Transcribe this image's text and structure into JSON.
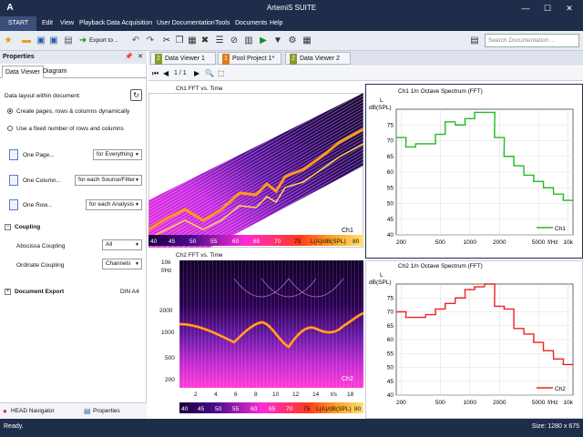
{
  "app": {
    "title": "ArtemiS SUITE",
    "logo": "A"
  },
  "window_controls": {
    "minimize": "—",
    "maximize": "☐",
    "close": "✕"
  },
  "menu": {
    "start": "START",
    "items": [
      "Edit",
      "View",
      "Playback",
      "Data Acquisition",
      "User Documentation",
      "Tools",
      "Documents",
      "Help"
    ]
  },
  "toolbar": {
    "export_label": "Export to ..",
    "search_placeholder": "Search Documentation ..."
  },
  "properties": {
    "title": "Properties",
    "tabs": [
      "Data Viewer",
      "Diagram"
    ],
    "layout_label": "Data layout within document:",
    "option1": "Create pages, rows & columns dynamically",
    "option2": "Use a fixed number of rows and columns",
    "one_page": "One Page...",
    "one_page_value": "for Everything",
    "one_column": "One Column...",
    "one_column_value": "for each Source/Filter",
    "one_row": "One Row...",
    "one_row_value": "for each Analysis",
    "coupling": "Coupling",
    "abscissa": "Abscissa Coupling",
    "abscissa_value": "All",
    "ordinate": "Ordinate Coupling",
    "ordinate_value": "Channels",
    "doc_export": "Document Export",
    "doc_export_value": "DIN A4",
    "bottom_tabs": [
      "HEAD Navigator",
      "Properties"
    ]
  },
  "doc_tabs": [
    {
      "num": "2",
      "label": "Data Viewer 1",
      "color": "#8a9a2a"
    },
    {
      "num": "1",
      "label": "Pool Project 1*",
      "color": "#e07a1a"
    },
    {
      "num": "2",
      "label": "Data Viewer 2",
      "color": "#8a9a2a"
    }
  ],
  "page_nav": "1 / 1",
  "charts": {
    "top_left": {
      "title": "Ch1 FFT vs. Time",
      "channel": "Ch1",
      "colorbar": [
        "40",
        "45",
        "50",
        "55",
        "60",
        "65",
        "70",
        "75",
        "L(A)/dB(SPL)",
        "80"
      ]
    },
    "bottom_left": {
      "title": "Ch2 FFT vs. Time",
      "channel": "Ch2",
      "y_unit_top": "10k",
      "y_unit": "f/Hz",
      "yticks": [
        "2000",
        "1000",
        "500",
        "200"
      ],
      "xticks": [
        "2",
        "4",
        "6",
        "8",
        "10",
        "12",
        "14",
        "t/s",
        "18"
      ],
      "colorbar": [
        "40",
        "45",
        "50",
        "55",
        "60",
        "65",
        "70",
        "75",
        "L(A)/dB(SPL)",
        "80"
      ]
    }
  },
  "chart_data": [
    {
      "type": "line",
      "title": "Ch1 1/n Octave Spectrum (FFT)",
      "ylabel_top": "L",
      "ylabel": "dB(SPL)",
      "xlabel": "f/Hz",
      "xscale": "log",
      "xticks": [
        "200",
        "500",
        "1000",
        "2000",
        "5000",
        "f/Hz",
        "10k"
      ],
      "yticks": [
        "75",
        "70",
        "65",
        "60",
        "55",
        "50",
        "45",
        "40"
      ],
      "ylim": [
        40,
        80
      ],
      "series": [
        {
          "name": "Ch1",
          "color": "#22bb22",
          "x": [
            200,
            250,
            315,
            400,
            500,
            630,
            800,
            1000,
            1250,
            1600,
            2000,
            2500,
            3150,
            4000,
            5000,
            6300,
            8000,
            10000
          ],
          "y": [
            71,
            68,
            69,
            69,
            72,
            76,
            75,
            77,
            79,
            79,
            71,
            65,
            62,
            59,
            57,
            55,
            53,
            51
          ]
        }
      ]
    },
    {
      "type": "line",
      "title": "Ch2 1/n Octave Spectrum (FFT)",
      "ylabel_top": "L",
      "ylabel": "dB(SPL)",
      "xlabel": "f/Hz",
      "xscale": "log",
      "xticks": [
        "200",
        "500",
        "1000",
        "2000",
        "5000",
        "f/Hz",
        "10k"
      ],
      "yticks": [
        "75",
        "70",
        "65",
        "60",
        "55",
        "50",
        "45",
        "40"
      ],
      "ylim": [
        40,
        80
      ],
      "series": [
        {
          "name": "Ch2",
          "color": "#ee2222",
          "x": [
            200,
            250,
            315,
            400,
            500,
            630,
            800,
            1000,
            1250,
            1600,
            2000,
            2500,
            3150,
            4000,
            5000,
            6300,
            8000,
            10000
          ],
          "y": [
            70,
            68,
            68,
            69,
            71,
            73,
            75,
            78,
            79,
            80,
            72,
            71,
            64,
            62,
            59,
            56,
            53,
            51
          ]
        }
      ]
    }
  ],
  "status": {
    "left": "Ready.",
    "right": "Size: 1280 x 675"
  }
}
